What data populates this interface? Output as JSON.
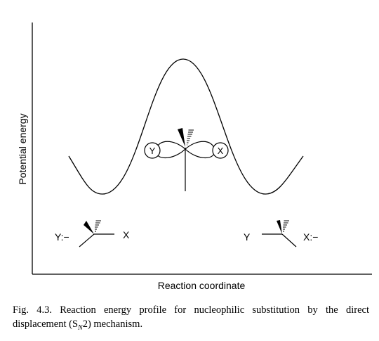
{
  "diagram": {
    "y_axis_label": "Potential energy",
    "x_axis_label": "Reaction coordinate",
    "transition_state": {
      "nucleophile": "Y",
      "leaving_group": "X"
    },
    "reactants": {
      "nucleophile": "Y:−",
      "leaving_group": "X"
    },
    "products": {
      "nucleophile": "Y",
      "leaving_group": "X:−"
    }
  },
  "caption": {
    "prefix": "Fig. 4.3. Reaction energy profile for nucleophilic substitution by the direct displacement (S",
    "subscript": "N",
    "suffix": "2) mechanism."
  }
}
